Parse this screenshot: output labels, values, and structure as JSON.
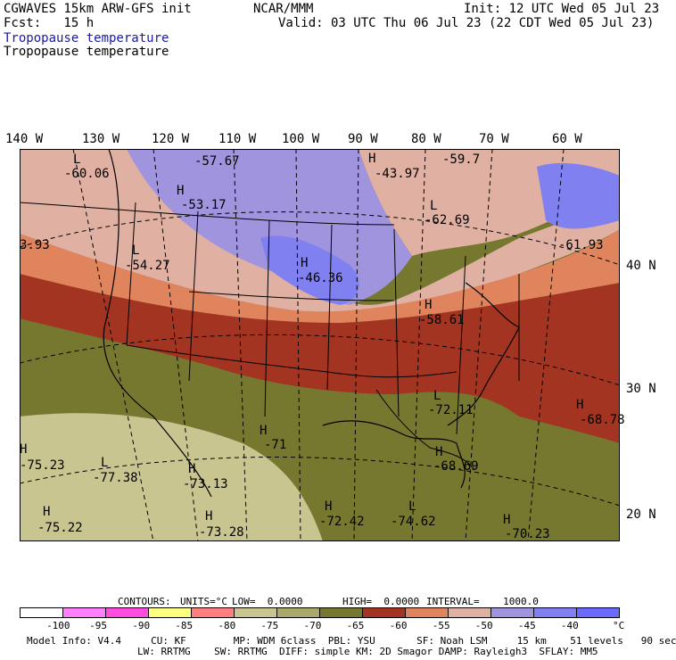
{
  "header": {
    "model": "CGWAVES 15km ARW-GFS init",
    "fcst": "Fcst:   15 h",
    "org": "NCAR/MMM",
    "init": "Init: 12 UTC Wed 05 Jul 23",
    "valid": "Valid: 03 UTC Thu 06 Jul 23 (22 CDT Wed 05 Jul 23)",
    "field_link": "Tropopause temperature",
    "field": "Tropopause temperature"
  },
  "longitudes": [
    "140 W",
    "130 W",
    "120 W",
    "110 W",
    "100 W",
    "90 W",
    "80 W",
    "70 W",
    "60 W"
  ],
  "latitudes": [
    "40 N",
    "30 N",
    "20 N"
  ],
  "extrema": [
    {
      "type": "L",
      "value": "-60.06"
    },
    {
      "type": "",
      "value": "-57.67"
    },
    {
      "type": "H",
      "value": "-53.17"
    },
    {
      "type": "H",
      "value": "-43.97"
    },
    {
      "type": "",
      "value": "-59.7"
    },
    {
      "type": "L",
      "value": "-62.69"
    },
    {
      "type": "",
      "value": "-61.93"
    },
    {
      "type": "",
      "value": "3.93"
    },
    {
      "type": "L",
      "value": "-54.27"
    },
    {
      "type": "H",
      "value": "-46.36"
    },
    {
      "type": "H",
      "value": "-58.61"
    },
    {
      "type": "L",
      "value": "-72.11"
    },
    {
      "type": "H",
      "value": "-68.78"
    },
    {
      "type": "H",
      "value": "-71"
    },
    {
      "type": "H",
      "value": "-75.23"
    },
    {
      "type": "L",
      "value": "-77.38"
    },
    {
      "type": "H",
      "value": "-73.13"
    },
    {
      "type": "H",
      "value": "-68.69"
    },
    {
      "type": "H",
      "value": "-75.22"
    },
    {
      "type": "H",
      "value": "-73.28"
    },
    {
      "type": "H",
      "value": "-72.42"
    },
    {
      "type": "L",
      "value": "-74.62"
    },
    {
      "type": "H",
      "value": "-70.23"
    }
  ],
  "contour_info": {
    "contours": "CONTOURS:",
    "units": "UNITS=°C",
    "low": "LOW=  0.0000",
    "high": "HIGH=  0.0000",
    "interval": "INTERVAL=    1000.0"
  },
  "legend": {
    "colors": [
      "#ffffff",
      "#ff80ff",
      "#ff4ddf",
      "#ffff80",
      "#ff7f7f",
      "#c8c591",
      "#aaa86a",
      "#77782f",
      "#a23421",
      "#e0845d",
      "#e0b0a2",
      "#a094df",
      "#8080f0",
      "#6a6aff"
    ],
    "labels": [
      "-100",
      "-95",
      "-90",
      "-85",
      "-80",
      "-75",
      "-70",
      "-65",
      "-60",
      "-55",
      "-50",
      "-45",
      "-40",
      "°C"
    ]
  },
  "footer": {
    "line1": "Model Info: V4.4     CU: KF        MP: WDM 6class  PBL: YSU       SF: Noah LSM     15 km    51 levels   90 sec",
    "line2": "LW: RRTMG    SW: RRTMG  DIFF: simple KM: 2D Smagor DAMP: Rayleigh3  SFLAY: MM5"
  }
}
